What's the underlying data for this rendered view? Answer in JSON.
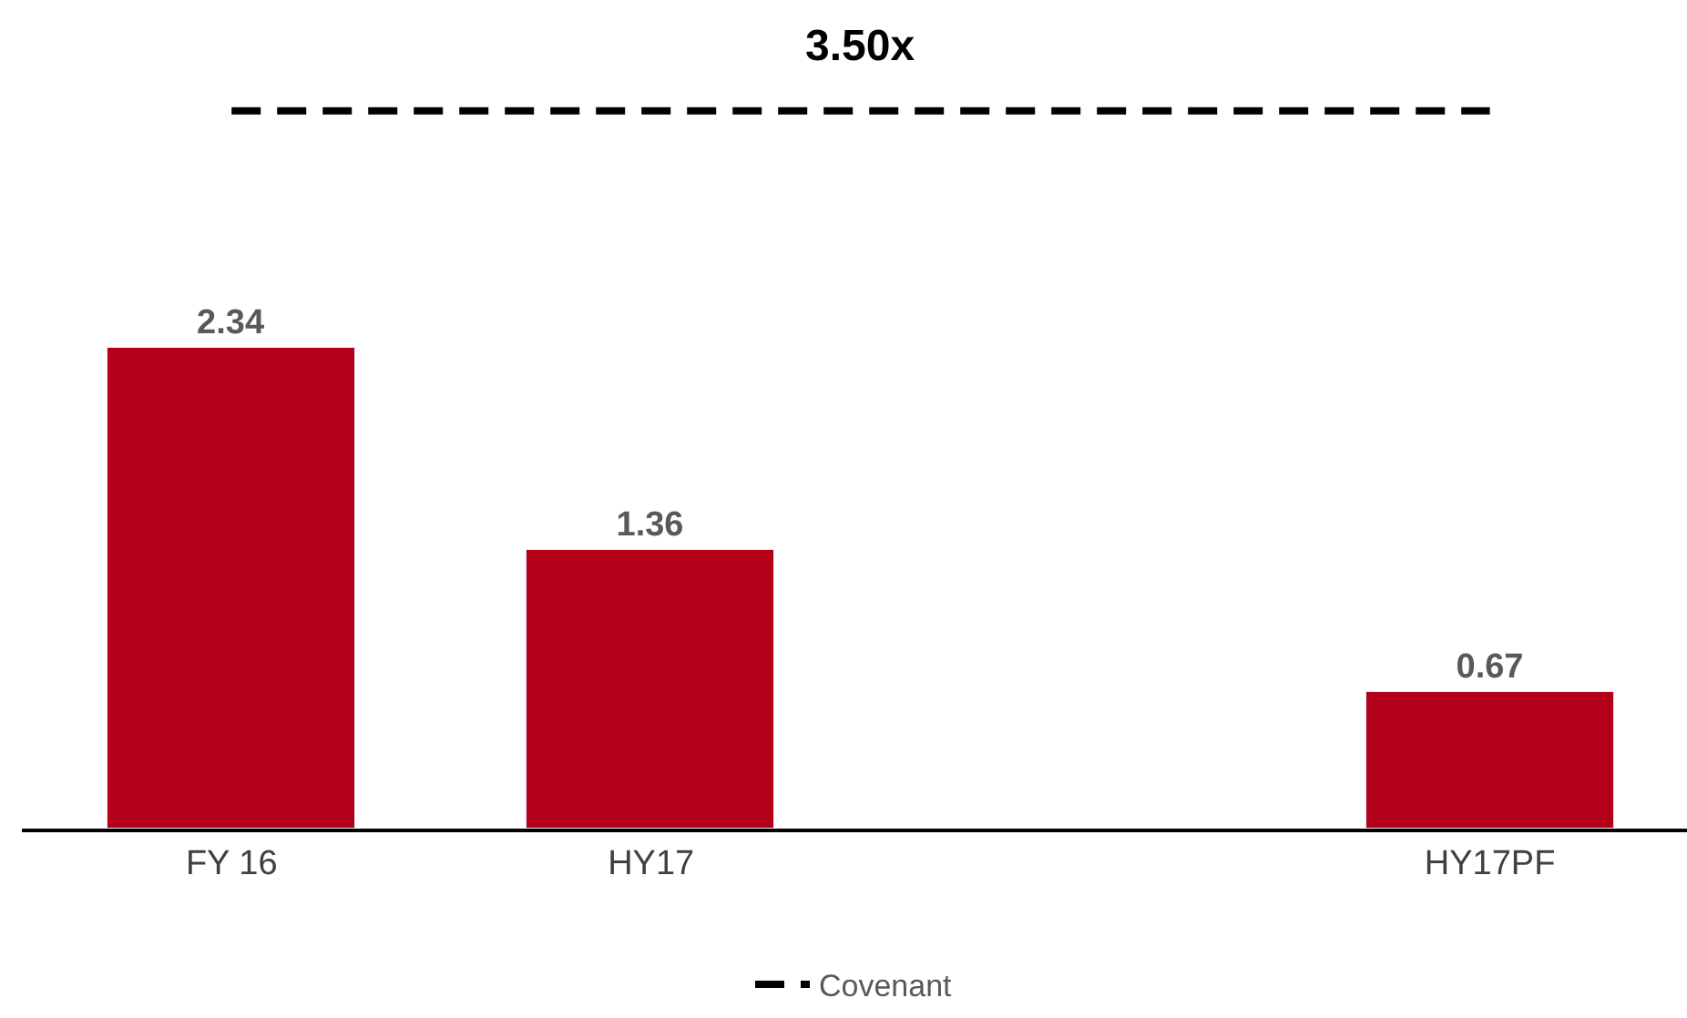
{
  "chart_data": {
    "type": "bar",
    "categories": [
      "FY 16",
      "HY17",
      null,
      "HY17PF"
    ],
    "series": [
      {
        "color": "#b5001a",
        "values": [
          2.34,
          1.36,
          null,
          0.67
        ],
        "value_labels": [
          "2.34",
          "1.36",
          null,
          "0.67"
        ]
      },
      {
        "type": "line",
        "name": "Covenant",
        "color": "#000000",
        "line_style": "dashed",
        "marker": "none",
        "values": [
          3.5,
          3.5,
          3.5,
          3.5
        ]
      }
    ],
    "annotations": [
      {
        "text": "3.50x",
        "y": 3.5
      }
    ],
    "ylim": [
      0,
      4.04
    ],
    "tick_labels": "x",
    "legend": "bottom"
  }
}
